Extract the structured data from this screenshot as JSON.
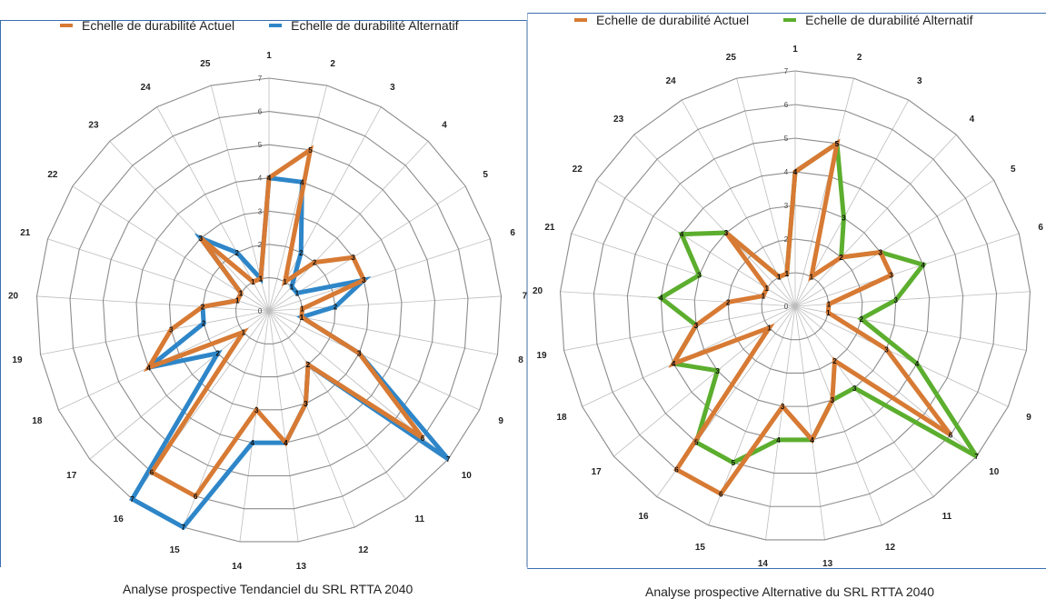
{
  "colors": {
    "actuel": "#d77a34",
    "alt_left": "#2e86c8",
    "alt_right": "#5cae2e",
    "grid": "#8c8c8c",
    "gridlight": "#bdbdbd"
  },
  "chart_data": [
    {
      "type": "radar",
      "title": "",
      "caption": "Analyse prospective Tendanciel du SRL RTTA 2040",
      "categories": [
        "1",
        "2",
        "3",
        "4",
        "5",
        "6",
        "7",
        "8",
        "9",
        "10",
        "11",
        "12",
        "13",
        "14",
        "15",
        "16",
        "17",
        "18",
        "19",
        "20",
        "21",
        "22",
        "23",
        "24",
        "25"
      ],
      "rticks": [
        "0",
        "1",
        "2",
        "3",
        "4",
        "5",
        "6",
        "7"
      ],
      "rlim": [
        0,
        7
      ],
      "legend_position": "top",
      "series": [
        {
          "name": "Echelle de durabilité Actuel",
          "color_key": "actuel",
          "values": [
            4,
            5,
            1,
            2,
            3,
            3,
            1,
            1,
            3,
            6,
            2,
            3,
            4,
            3,
            6,
            6,
            1,
            4,
            3,
            2,
            1,
            1,
            3,
            1,
            1
          ]
        },
        {
          "name": "Echelle de durabilité Alternatif",
          "color_key": "alt_left",
          "values": [
            4,
            4,
            2,
            1,
            1,
            3,
            2,
            1,
            3,
            7,
            2,
            3,
            4,
            4,
            7,
            7,
            2,
            4,
            2,
            2,
            1,
            1,
            3,
            2,
            1
          ]
        }
      ]
    },
    {
      "type": "radar",
      "title": "",
      "caption": "Analyse prospective Alternative du SRL RTTA 2040",
      "categories": [
        "1",
        "2",
        "3",
        "4",
        "5",
        "6",
        "7",
        "8",
        "9",
        "10",
        "11",
        "12",
        "13",
        "14",
        "15",
        "16",
        "17",
        "18",
        "19",
        "20",
        "21",
        "22",
        "23",
        "24",
        "25"
      ],
      "rticks": [
        "0",
        "1",
        "2",
        "3",
        "4",
        "5",
        "6",
        "7"
      ],
      "rlim": [
        0,
        7
      ],
      "legend_position": "top",
      "series": [
        {
          "name": "Echelle de durabilité Actuel",
          "color_key": "actuel",
          "values": [
            4,
            5,
            1,
            2,
            3,
            3,
            1,
            1,
            3,
            6,
            2,
            3,
            4,
            3,
            6,
            6,
            1,
            4,
            3,
            2,
            1,
            1,
            3,
            1,
            1
          ]
        },
        {
          "name": "Echelle de durabilité Alternatif",
          "color_key": "alt_right",
          "values": [
            4,
            5,
            3,
            2,
            3,
            4,
            3,
            2,
            4,
            7,
            3,
            3,
            4,
            4,
            5,
            5,
            3,
            4,
            3,
            4,
            3,
            4,
            3,
            1,
            1
          ]
        }
      ]
    }
  ]
}
